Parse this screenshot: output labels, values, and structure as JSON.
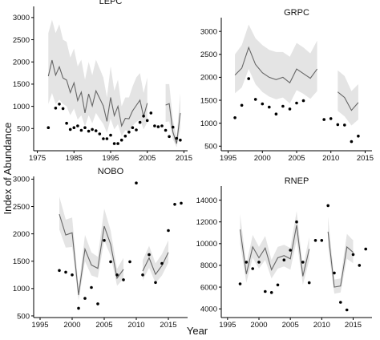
{
  "figure": {
    "ylabel": "Index of Abundance",
    "xlabel": "Year"
  },
  "chart_data": [
    {
      "type": "line",
      "title": "LEPC",
      "xlim": [
        1974,
        2016
      ],
      "ylim": [
        0,
        3250
      ],
      "xticks": [
        1975,
        1985,
        1995,
        2005,
        2015
      ],
      "yticks": [
        500,
        1000,
        1500,
        2000,
        2500,
        3000
      ],
      "segments": [
        {
          "x": [
            1978,
            1979,
            1980,
            1981,
            1982,
            1983,
            1984,
            1985,
            1986,
            1987,
            1988,
            1989,
            1990,
            1991,
            1992,
            1993,
            1994,
            1995,
            1996,
            1997,
            1998,
            1999,
            2000,
            2001,
            2002,
            2003,
            2004,
            2005
          ],
          "y": [
            1680,
            2040,
            1700,
            1890,
            1640,
            1590,
            1310,
            1530,
            1130,
            1320,
            850,
            1280,
            1010,
            1350,
            1180,
            1010,
            660,
            1200,
            790,
            1000,
            560,
            730,
            720,
            900,
            1020,
            1140,
            770,
            1070
          ],
          "lower": [
            1050,
            1300,
            1050,
            1150,
            1050,
            1000,
            800,
            950,
            700,
            800,
            550,
            800,
            620,
            850,
            720,
            600,
            400,
            720,
            480,
            600,
            330,
            460,
            440,
            560,
            650,
            700,
            480,
            640
          ],
          "upper": [
            2650,
            2950,
            2650,
            2850,
            2500,
            2450,
            2100,
            2300,
            1900,
            2050,
            1600,
            2000,
            1700,
            2050,
            1850,
            1650,
            1200,
            1900,
            1350,
            1600,
            1000,
            1200,
            1200,
            1450,
            1650,
            1750,
            1300,
            1650
          ]
        },
        {
          "x": [
            2010,
            2011,
            2012,
            2013,
            2014
          ],
          "y": [
            1030,
            1060,
            420,
            160,
            850
          ],
          "lower": [
            650,
            660,
            260,
            80,
            500
          ],
          "upper": [
            1500,
            1500,
            700,
            300,
            1300
          ]
        }
      ],
      "observed": {
        "x": [
          1978,
          1980,
          1981,
          1982,
          1983,
          1984,
          1985,
          1986,
          1987,
          1988,
          1989,
          1990,
          1991,
          1992,
          1993,
          1994,
          1995,
          1996,
          1997,
          1998,
          1999,
          2000,
          2001,
          2002,
          2003,
          2004,
          2005,
          2006,
          2007,
          2008,
          2009,
          2010,
          2011,
          2012,
          2013,
          2014
        ],
        "y": [
          520,
          960,
          1050,
          950,
          620,
          480,
          520,
          560,
          460,
          520,
          440,
          480,
          450,
          380,
          270,
          270,
          350,
          160,
          160,
          240,
          330,
          420,
          520,
          470,
          640,
          780,
          680,
          850,
          560,
          540,
          560,
          460,
          320,
          530,
          280,
          240
        ]
      }
    },
    {
      "type": "line",
      "title": "GRPC",
      "xlim": [
        1994,
        2016
      ],
      "ylim": [
        400,
        3300
      ],
      "xticks": [
        1995,
        2000,
        2005,
        2010,
        2015
      ],
      "yticks": [
        500,
        1000,
        1500,
        2000,
        2500,
        3000
      ],
      "segments": [
        {
          "x": [
            1996,
            1997,
            1998,
            1999,
            2000,
            2001,
            2002,
            2003,
            2004,
            2005,
            2006,
            2007,
            2008
          ],
          "y": [
            2050,
            2200,
            2650,
            2280,
            2100,
            2000,
            1950,
            2000,
            1880,
            2180,
            2080,
            1980,
            2180
          ],
          "lower": [
            1650,
            1780,
            2180,
            1850,
            1680,
            1580,
            1520,
            1560,
            1430,
            1720,
            1640,
            1530,
            1700
          ],
          "upper": [
            2500,
            2700,
            3150,
            2850,
            2700,
            2600,
            2550,
            2550,
            2450,
            2750,
            2650,
            2520,
            2800
          ]
        },
        {
          "x": [
            2011,
            2012,
            2013,
            2014
          ],
          "y": [
            1680,
            1560,
            1280,
            1450
          ],
          "lower": [
            1270,
            1150,
            950,
            1080
          ],
          "upper": [
            2150,
            2030,
            1700,
            1850
          ]
        }
      ],
      "observed": {
        "x": [
          1996,
          1997,
          1998,
          1999,
          2000,
          2001,
          2002,
          2003,
          2004,
          2005,
          2006,
          2009,
          2010,
          2011,
          2012,
          2013,
          2014
        ],
        "y": [
          1120,
          1390,
          1970,
          1520,
          1420,
          1350,
          1200,
          1370,
          1310,
          1440,
          1490,
          1080,
          1100,
          970,
          960,
          600,
          720
        ]
      }
    },
    {
      "type": "line",
      "title": "NOBO",
      "xlim": [
        1994,
        2018
      ],
      "ylim": [
        470,
        3050
      ],
      "xticks": [
        1995,
        2000,
        2005,
        2010,
        2015
      ],
      "yticks": [
        500,
        1000,
        1500,
        2000,
        2500,
        3000
      ],
      "segments": [
        {
          "x": [
            1998,
            1999,
            2000,
            2001,
            2002,
            2003,
            2004,
            2005,
            2006,
            2007,
            2008
          ],
          "y": [
            2360,
            1980,
            2020,
            880,
            1720,
            1430,
            1370,
            2140,
            1810,
            1190,
            1350
          ],
          "lower": [
            2080,
            1750,
            1760,
            780,
            1500,
            1240,
            1200,
            1880,
            1600,
            1050,
            1180
          ],
          "upper": [
            2680,
            2260,
            2300,
            1020,
            1980,
            1660,
            1580,
            2460,
            2060,
            1360,
            1560
          ]
        },
        {
          "x": [
            2011,
            2012,
            2013,
            2014,
            2015
          ],
          "y": [
            1320,
            1560,
            1260,
            1420,
            1660
          ],
          "lower": [
            1150,
            1380,
            1100,
            1240,
            1470
          ],
          "upper": [
            1520,
            1780,
            1460,
            1630,
            1880
          ]
        }
      ],
      "observed": {
        "x": [
          1998,
          1999,
          2000,
          2001,
          2002,
          2003,
          2004,
          2005,
          2006,
          2007,
          2008,
          2009,
          2010,
          2011,
          2012,
          2013,
          2014,
          2015,
          2016,
          2017
        ],
        "y": [
          1330,
          1300,
          1250,
          640,
          820,
          1020,
          720,
          1880,
          1490,
          1250,
          1160,
          1490,
          2930,
          1250,
          1620,
          1110,
          1460,
          2060,
          2540,
          2560
        ]
      }
    },
    {
      "type": "line",
      "title": "RNEP",
      "xlim": [
        1994,
        2018
      ],
      "ylim": [
        3200,
        15300
      ],
      "xticks": [
        1995,
        2000,
        2005,
        2010,
        2015
      ],
      "yticks": [
        4000,
        6000,
        8000,
        10000,
        12000,
        14000
      ],
      "segments": [
        {
          "x": [
            1997,
            1998,
            1999,
            2000,
            2001,
            2002,
            2003,
            2004,
            2005,
            2006,
            2007,
            2008
          ],
          "y": [
            11300,
            7200,
            9700,
            8700,
            9600,
            7600,
            8700,
            8900,
            8600,
            11700,
            7000,
            9500
          ],
          "lower": [
            10000,
            6400,
            8700,
            7700,
            8500,
            6800,
            7700,
            7900,
            7600,
            10300,
            6200,
            8500
          ],
          "upper": [
            12700,
            8100,
            10800,
            9700,
            10700,
            8500,
            9700,
            9900,
            9600,
            13000,
            7800,
            10600
          ]
        },
        {
          "x": [
            2011,
            2012,
            2013,
            2014,
            2015
          ],
          "y": [
            11100,
            6000,
            6100,
            9700,
            9200
          ],
          "lower": [
            9800,
            5400,
            5500,
            8600,
            8200
          ],
          "upper": [
            12500,
            6700,
            6800,
            10900,
            10300
          ]
        }
      ],
      "observed": {
        "x": [
          1997,
          1998,
          1999,
          2000,
          2001,
          2002,
          2003,
          2004,
          2005,
          2006,
          2007,
          2008,
          2009,
          2010,
          2011,
          2012,
          2013,
          2014,
          2015,
          2016,
          2017
        ],
        "y": [
          6300,
          8300,
          7700,
          8300,
          5600,
          5500,
          6200,
          8500,
          9400,
          12000,
          8300,
          6400,
          10300,
          10300,
          13500,
          7300,
          4600,
          3900,
          9000,
          8000,
          9500
        ]
      }
    }
  ]
}
